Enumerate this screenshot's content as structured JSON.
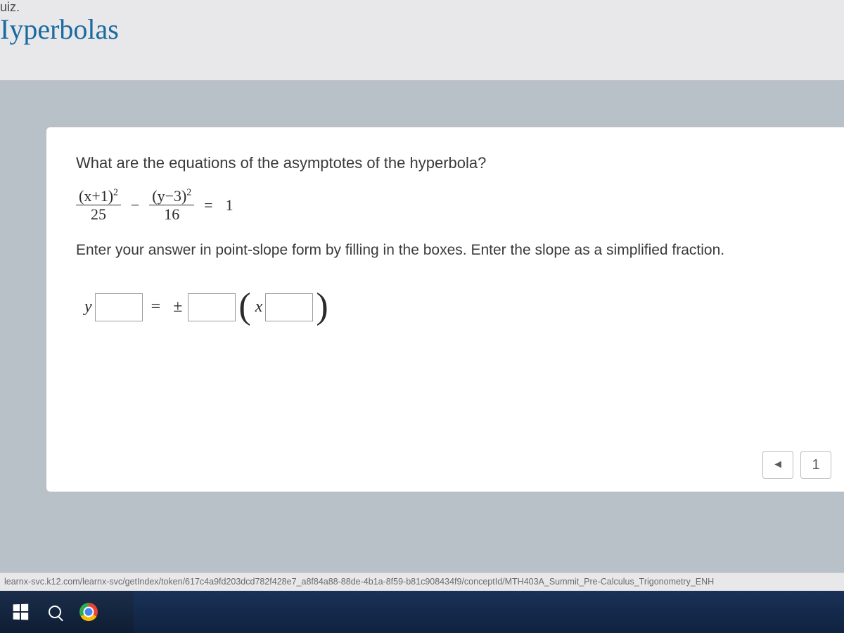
{
  "header": {
    "partial": "uiz.",
    "title": "Iyperbolas"
  },
  "question": {
    "prompt": "What are the equations of the asymptotes of the hyperbola?",
    "equation": {
      "term1_num_base": "(x+1)",
      "term1_num_exp": "2",
      "term1_den": "25",
      "op": "−",
      "term2_num_base": "(y−3)",
      "term2_num_exp": "2",
      "term2_den": "16",
      "eq": "=",
      "rhs": "1"
    },
    "instruction": "Enter your answer in point-slope form by filling in the boxes. Enter the slope as a simplified fraction.",
    "answer_template": {
      "var_y": "y",
      "eq": "=",
      "pm": "±",
      "var_x": "x"
    }
  },
  "pager": {
    "prev_icon": "◄",
    "current": "1"
  },
  "status_url": "learnx-svc.k12.com/learnx-svc/getIndex/token/617c4a9fd203dcd782f428e7_a8f84a88-88de-4b1a-8f59-b81c908434f9/conceptId/MTH403A_Summit_Pre-Calculus_Trigonometry_ENH",
  "colors": {
    "page_bg": "#b8c0c8",
    "panel_bg": "#ffffff",
    "header_bg": "#e8e8ea",
    "title_color": "#1a6aa0",
    "text_color": "#3a3a3c",
    "border": "#bcbcc0",
    "input_border": "#9a9aa0",
    "taskbar_top": "#1a2d4a",
    "taskbar_bot": "#0f1d33"
  }
}
